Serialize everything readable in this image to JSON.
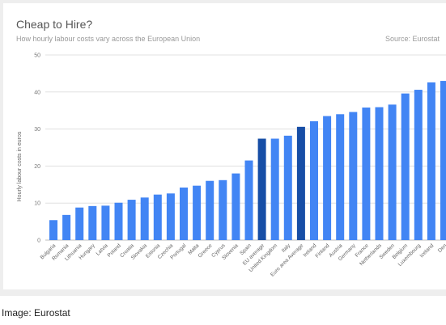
{
  "caption": "Image: Eurostat",
  "chart_data": {
    "type": "bar",
    "title": "Cheap to Hire?",
    "subtitle": "How hourly labour costs vary across the European Union",
    "source": "Source: Eurostat",
    "ylabel": "Hourly labour costs in euros",
    "xlabel": "",
    "ylim": [
      0,
      50
    ],
    "yticks": [
      0,
      10,
      20,
      30,
      40,
      50
    ],
    "grid": true,
    "categories": [
      "Bulgaria",
      "Romania",
      "Lithuania",
      "Hungary",
      "Latvia",
      "Poland",
      "Croatia",
      "Slovakia",
      "Estonia",
      "Czechia",
      "Portugal",
      "Malta",
      "Greece",
      "Cyprus",
      "Slovenia",
      "Spain",
      "EU average",
      "United Kingdom",
      "Italy",
      "Euro area Average",
      "Ireland",
      "Finland",
      "Austria",
      "Germany",
      "France",
      "Netherlands",
      "Sweden",
      "Belgium",
      "Luxembourg",
      "Iceland",
      "Den"
    ],
    "values": [
      5.4,
      6.8,
      8.8,
      9.2,
      9.3,
      10.1,
      10.9,
      11.5,
      12.3,
      12.6,
      14.2,
      14.7,
      16.0,
      16.2,
      18.0,
      21.5,
      27.4,
      27.4,
      28.2,
      30.6,
      32.1,
      33.5,
      34.0,
      34.6,
      35.8,
      35.9,
      36.6,
      39.6,
      40.6,
      42.6,
      43.0
    ],
    "colors": {
      "default": "#4285f4",
      "highlight": "#174ea6"
    },
    "highlight_categories": [
      "EU average",
      "Euro area Average"
    ]
  }
}
